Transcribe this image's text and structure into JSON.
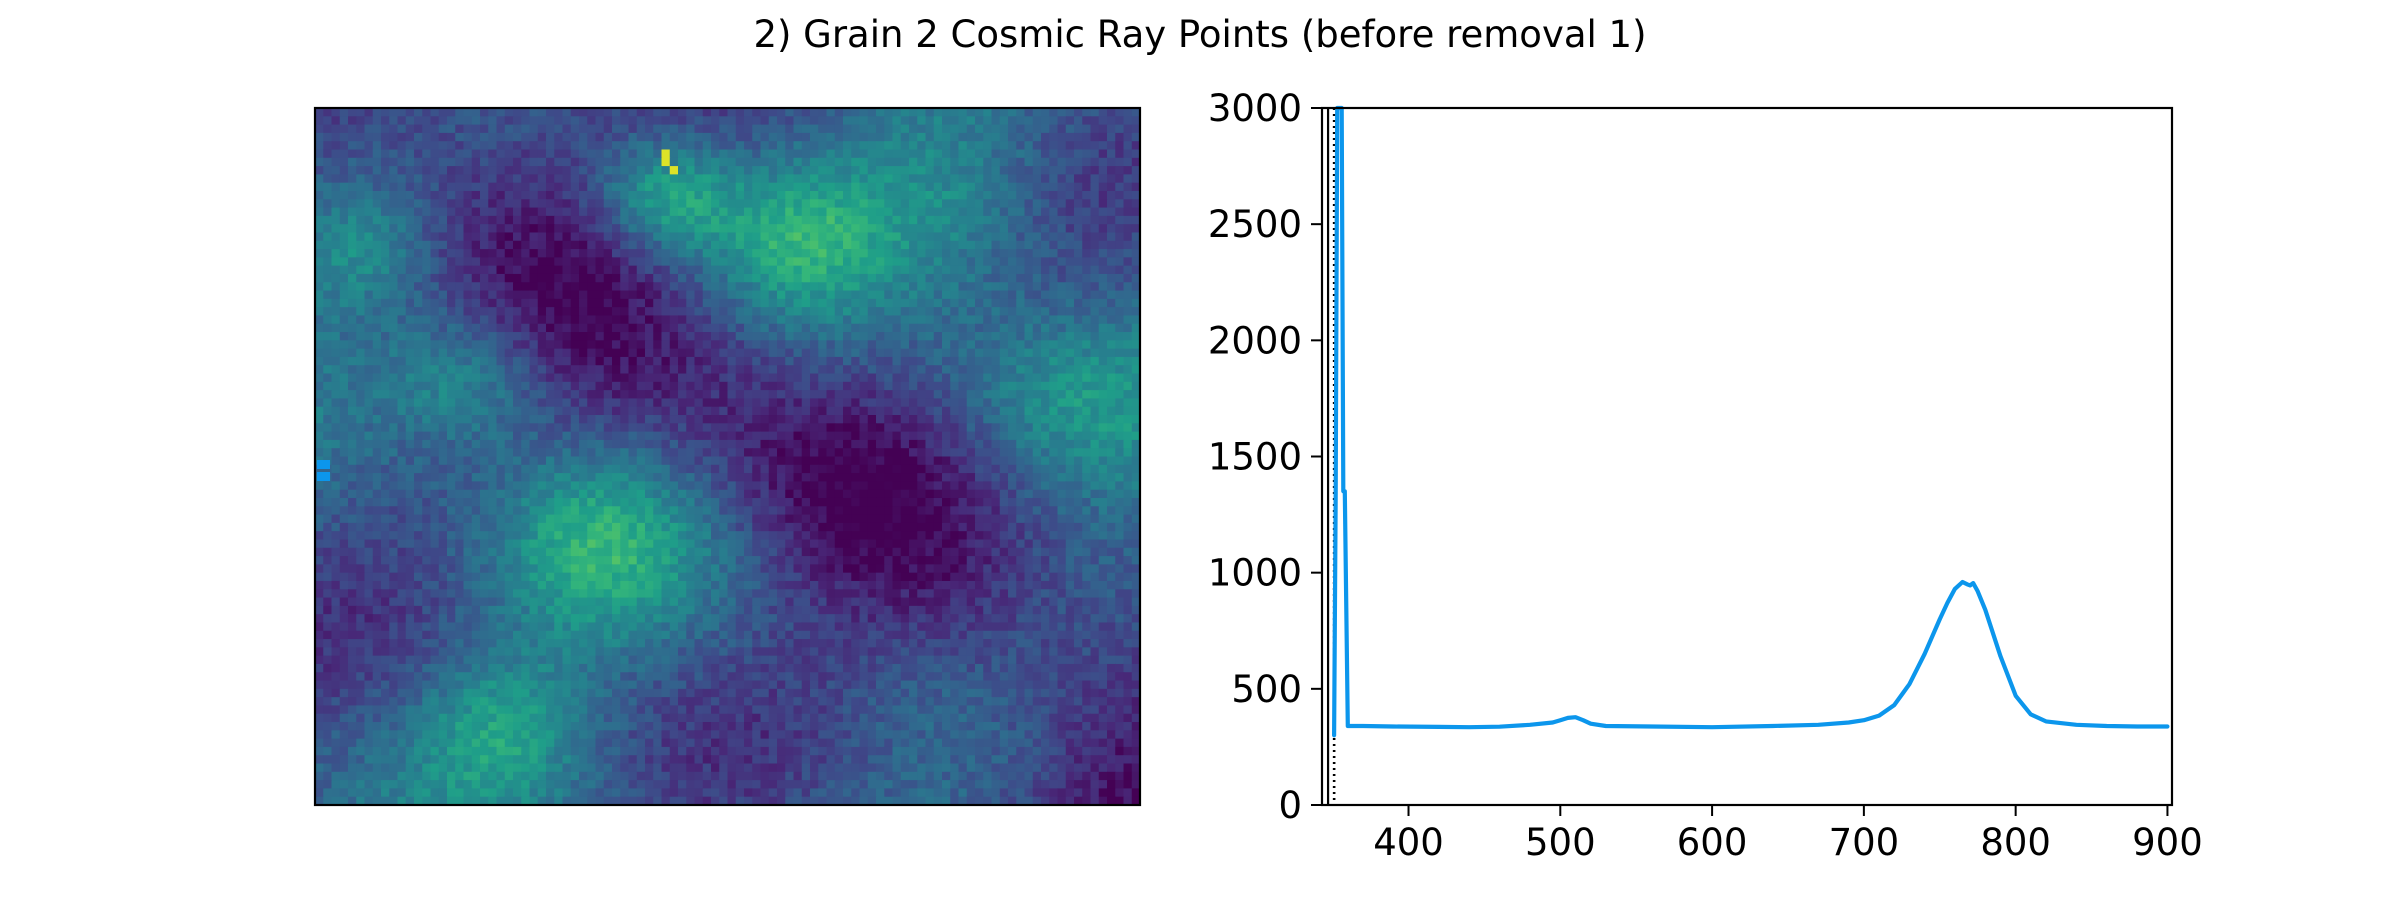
{
  "colors": {
    "series": "#0c96ec",
    "axes": "#000000",
    "background": "#ffffff",
    "colormap": "viridis"
  },
  "chart_data": [
    {
      "type": "heatmap",
      "colormap": "viridis",
      "grid": false,
      "axes_visible": false,
      "marker_color": "#0c96ec"
    },
    {
      "type": "line",
      "title": "2) Grain 2 Cosmic Ray Points (before removal 1)",
      "xlabel": "",
      "ylabel": "",
      "xlim": [
        343,
        903
      ],
      "ylim": [
        0,
        3000
      ],
      "xticks": [
        400,
        500,
        600,
        700,
        800,
        900
      ],
      "yticks": [
        0,
        500,
        1000,
        1500,
        2000,
        2500,
        3000
      ],
      "grid": false,
      "legend": "none",
      "vlines": [
        {
          "x": 347,
          "style": "solid"
        },
        {
          "x": 351,
          "style": "dotted"
        }
      ],
      "series": [
        {
          "color": "#0c96ec",
          "x": [
            351,
            352,
            353,
            354,
            355,
            356,
            357,
            358,
            360,
            370,
            390,
            420,
            440,
            460,
            480,
            495,
            500,
            505,
            510,
            515,
            520,
            530,
            560,
            600,
            640,
            670,
            690,
            700,
            710,
            720,
            730,
            740,
            750,
            755,
            760,
            765,
            768,
            770,
            772,
            775,
            780,
            790,
            800,
            810,
            820,
            840,
            860,
            880,
            900
          ],
          "y": [
            300,
            1350,
            3000,
            3000,
            3000,
            3000,
            1350,
            1350,
            340,
            340,
            338,
            336,
            335,
            337,
            345,
            355,
            365,
            375,
            378,
            365,
            350,
            340,
            338,
            335,
            340,
            345,
            355,
            365,
            385,
            430,
            520,
            650,
            800,
            870,
            930,
            960,
            950,
            945,
            955,
            920,
            840,
            640,
            470,
            390,
            360,
            345,
            340,
            338,
            338
          ]
        }
      ]
    }
  ]
}
